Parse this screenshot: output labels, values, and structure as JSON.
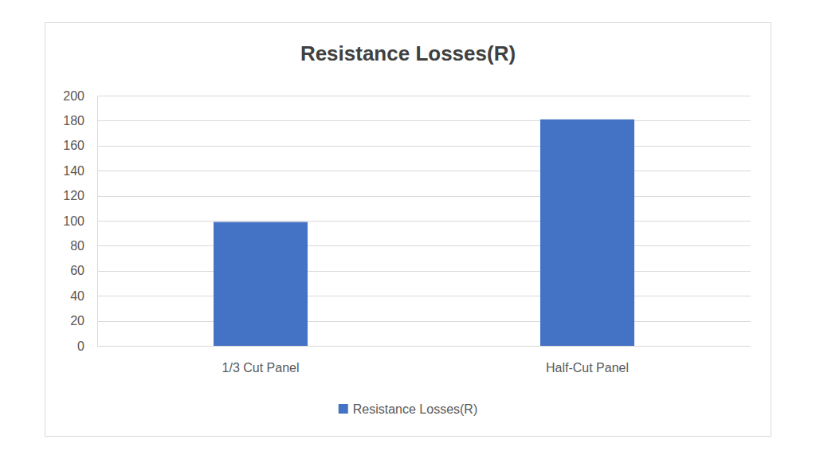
{
  "chart_data": {
    "type": "bar",
    "title": "Resistance Losses(R)",
    "categories": [
      "1/3 Cut Panel",
      "Half-Cut Panel"
    ],
    "series": [
      {
        "name": "Resistance Losses(R)",
        "color": "#4472c4",
        "values": [
          99,
          181
        ]
      }
    ],
    "ylim": [
      0,
      200
    ],
    "yticks": [
      0,
      20,
      40,
      60,
      80,
      100,
      120,
      140,
      160,
      180,
      200
    ],
    "grid": true,
    "legend": "bottom"
  }
}
